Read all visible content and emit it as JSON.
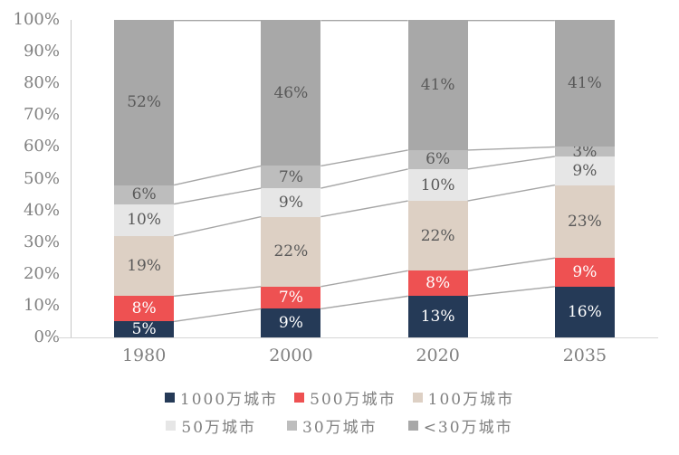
{
  "chart_data": {
    "type": "bar",
    "variant": "stacked-100",
    "title": "",
    "xlabel": "",
    "ylabel": "",
    "grid": false,
    "legend_position": "bottom",
    "categories": [
      "1980",
      "2000",
      "2020",
      "2035"
    ],
    "series": [
      {
        "name": "1000万城市",
        "color": "#253a57",
        "label_color": "#ffffff",
        "values": [
          5,
          9,
          13,
          16
        ]
      },
      {
        "name": "500万城市",
        "color": "#ee5152",
        "label_color": "#ffffff",
        "values": [
          8,
          7,
          8,
          9
        ]
      },
      {
        "name": "100万城市",
        "color": "#ddd0c4",
        "label_color": "#595959",
        "values": [
          19,
          22,
          22,
          23
        ]
      },
      {
        "name": "50万城市",
        "color": "#e6e6e6",
        "label_color": "#595959",
        "values": [
          10,
          9,
          10,
          9
        ]
      },
      {
        "name": "30万城市",
        "color": "#bdbdbd",
        "label_color": "#595959",
        "values": [
          6,
          7,
          6,
          3
        ]
      },
      {
        "name": "<30万城市",
        "color": "#a8a8a8",
        "label_color": "#595959",
        "values": [
          52,
          46,
          41,
          41
        ]
      }
    ],
    "value_suffix": "%",
    "y_axis": {
      "min": 0,
      "max": 100,
      "tick_labels": [
        "0%",
        "10%",
        "20%",
        "30%",
        "40%",
        "50%",
        "60%",
        "70%",
        "80%",
        "90%",
        "100%"
      ]
    },
    "legend_rows": [
      [
        "1000万城市",
        "500万城市",
        "100万城市"
      ],
      [
        "50万城市",
        "30万城市",
        "<30万城市"
      ]
    ],
    "colors": {
      "axis_line": "#c6c6c6",
      "bottom_axis_line": "#d6d6d6",
      "connector_line": "#a6a6a6",
      "tick_text": "#808080",
      "legend_text": "#7f7f7f"
    }
  }
}
